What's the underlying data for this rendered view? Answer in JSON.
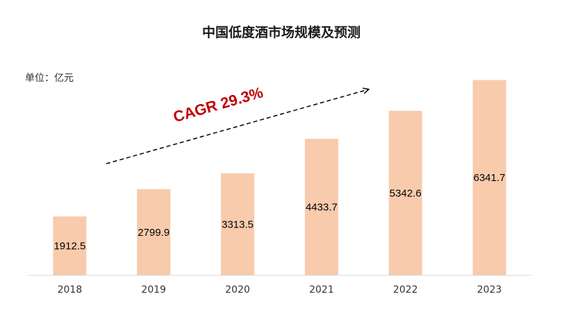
{
  "chart_data": {
    "type": "bar",
    "title": "中国低度酒市场规模及预测",
    "unit_label": "单位：亿元",
    "categories": [
      "2018",
      "2019",
      "2020",
      "2021",
      "2022",
      "2023"
    ],
    "values": [
      1912.5,
      2799.9,
      3313.5,
      4433.7,
      5342.6,
      6341.7
    ],
    "value_labels": [
      "1912.5",
      "2799.9",
      "3313.5",
      "4433.7",
      "5342.6",
      "6341.7"
    ],
    "annotation": "CAGR  29.3%",
    "ylim": [
      0,
      6800
    ],
    "grid": false,
    "legend": "none",
    "colors": {
      "bar": "#F8CBAD",
      "annotation": "#C00000",
      "arrow": "#000000",
      "axis": "#D9D9D9"
    }
  }
}
